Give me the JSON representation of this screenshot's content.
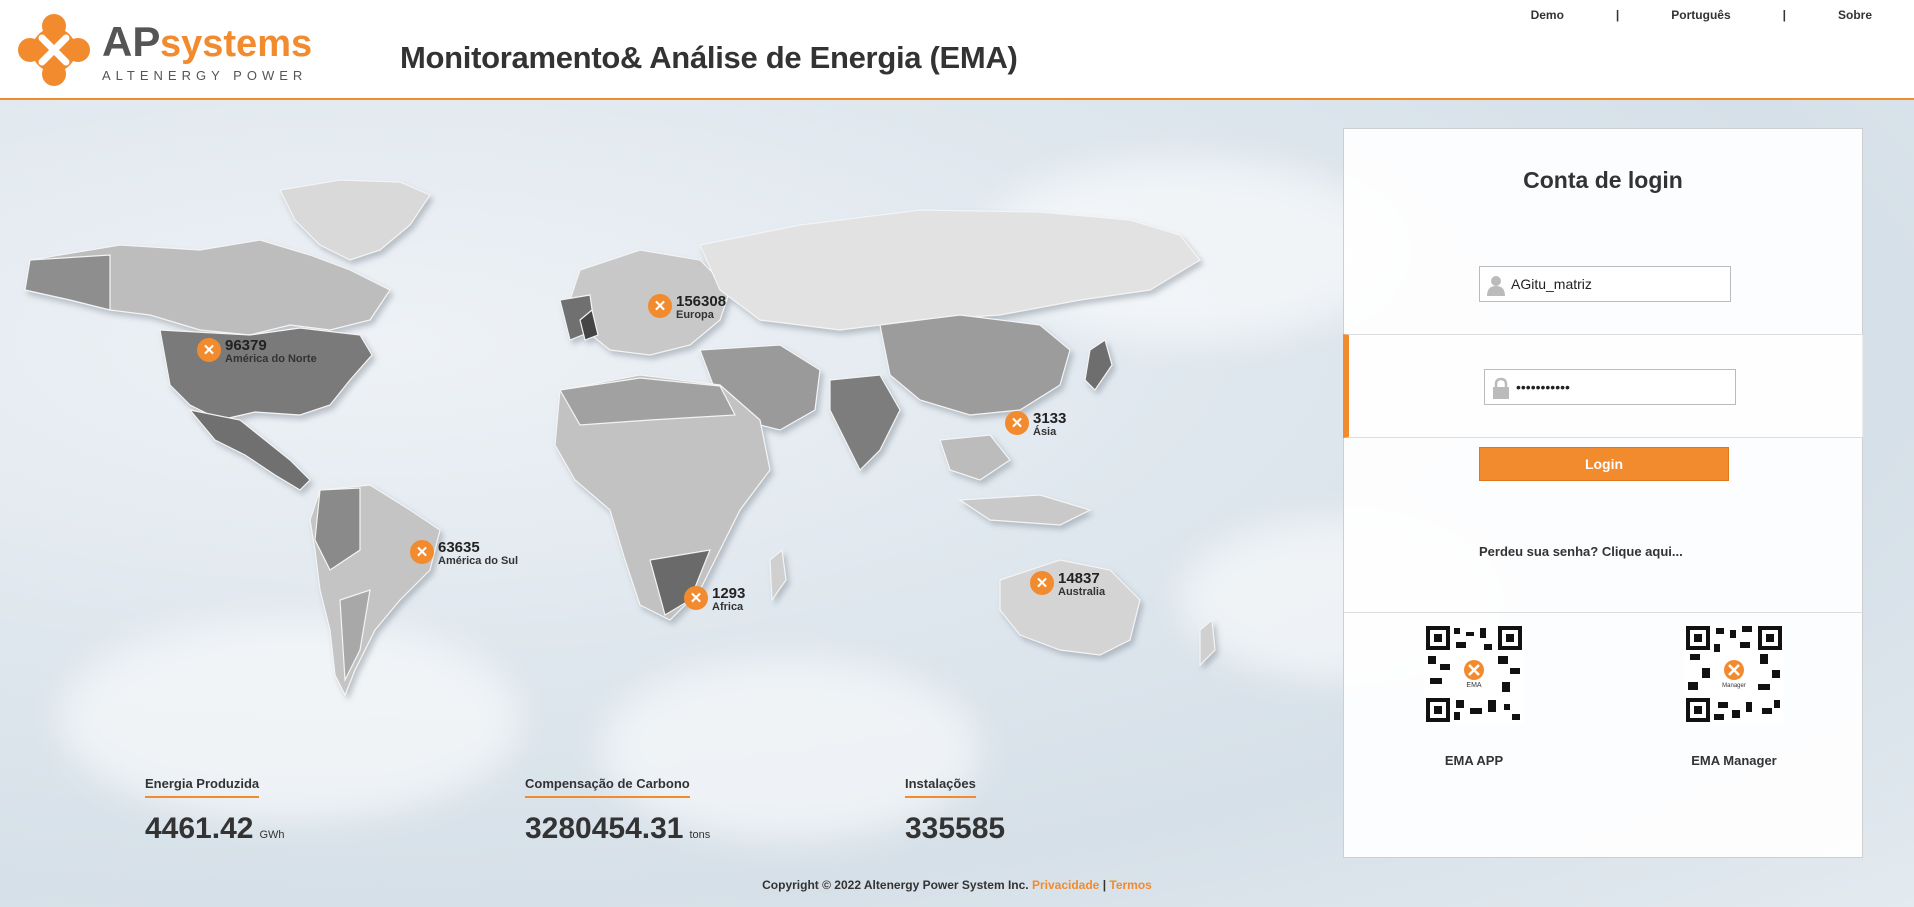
{
  "header": {
    "logo_brand_ap": "AP",
    "logo_brand_systems": "systems",
    "logo_tagline": "ALTENERGY POWER",
    "title": "Monitoramento& Análise de Energia (EMA)",
    "links": {
      "demo": "Demo",
      "language": "Português",
      "about": "Sobre",
      "separator": "|"
    }
  },
  "colors": {
    "accent": "#f28a2e",
    "text": "#333333"
  },
  "regions": [
    {
      "id": "north-america",
      "value": "96379",
      "name": "América do Norte"
    },
    {
      "id": "europe",
      "value": "156308",
      "name": "Europa"
    },
    {
      "id": "asia",
      "value": "3133",
      "name": "Ásia"
    },
    {
      "id": "south-america",
      "value": "63635",
      "name": "América do Sul"
    },
    {
      "id": "africa",
      "value": "1293",
      "name": "Africa"
    },
    {
      "id": "australia",
      "value": "14837",
      "name": "Australia"
    }
  ],
  "stats": {
    "energy": {
      "label": "Energia Produzida",
      "value": "4461.42",
      "unit": "GWh"
    },
    "carbon": {
      "label": "Compensação de Carbono",
      "value": "3280454.31",
      "unit": "tons"
    },
    "installs": {
      "label": "Instalações",
      "value": "335585"
    }
  },
  "login": {
    "title": "Conta de login",
    "username_value": "AGitu_matriz",
    "password_value": "•••••••••••",
    "button": "Login",
    "forgot": "Perdeu sua senha? Clique aqui..."
  },
  "apps": {
    "ema_app": {
      "label": "EMA APP",
      "qr_center": "EMA"
    },
    "ema_manager": {
      "label": "EMA Manager",
      "qr_center": "Manager"
    }
  },
  "footer": {
    "copyright": "Copyright © 2022 Altenergy Power System Inc.",
    "privacy": "Privacidade",
    "sep": "|",
    "terms": "Termos"
  }
}
